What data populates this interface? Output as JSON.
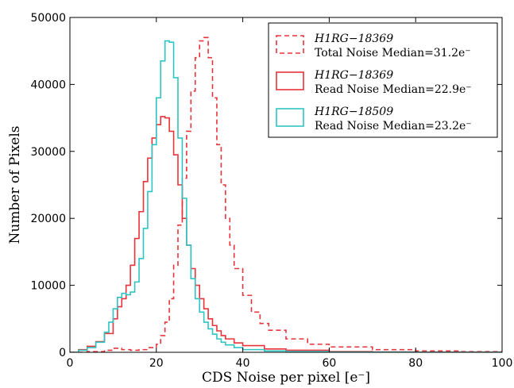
{
  "chart_data": {
    "type": "line",
    "xlabel": "CDS Noise per pixel [e⁻]",
    "ylabel": "Number of Pixels",
    "xlim": [
      0,
      100
    ],
    "ylim": [
      0,
      50000
    ],
    "x_ticks": [
      0,
      20,
      40,
      60,
      80,
      100
    ],
    "y_ticks": [
      0,
      10000,
      20000,
      30000,
      40000,
      50000
    ],
    "grid": false,
    "legend_position": "top-right",
    "series": [
      {
        "name": "H1RG−18369 Total Noise Median=31.2e⁻",
        "legend_line1": "H1RG−18369",
        "legend_line2": "Total Noise Median=31.2e⁻",
        "color": "#e8333a",
        "style": "dashed",
        "x": [
          0,
          4,
          8,
          10,
          12,
          14,
          16,
          18,
          20,
          21,
          22,
          23,
          24,
          25,
          26,
          27,
          28,
          29,
          30,
          31,
          32,
          33,
          34,
          35,
          36,
          37,
          38,
          40,
          42,
          44,
          46,
          50,
          55,
          60,
          70,
          80,
          90,
          100
        ],
        "y": [
          0,
          100,
          300,
          600,
          400,
          300,
          400,
          700,
          1200,
          2500,
          4500,
          8000,
          13000,
          19000,
          26000,
          33000,
          39000,
          44000,
          46500,
          47000,
          44000,
          38000,
          31000,
          25000,
          20000,
          16000,
          12500,
          8500,
          6000,
          4300,
          3300,
          2000,
          1200,
          800,
          400,
          200,
          100,
          0
        ]
      },
      {
        "name": "H1RG−18369 Read Noise Median=22.9e⁻",
        "legend_line1": "H1RG−18369",
        "legend_line2": "Read Noise Median=22.9e⁻",
        "color": "#e8333a",
        "style": "solid",
        "x": [
          0,
          2,
          4,
          6,
          8,
          10,
          11,
          12,
          13,
          14,
          15,
          16,
          17,
          18,
          19,
          20,
          21,
          22,
          23,
          24,
          25,
          26,
          27,
          28,
          29,
          30,
          31,
          32,
          33,
          34,
          35,
          36,
          38,
          40,
          45,
          50,
          60,
          70,
          80,
          100
        ],
        "y": [
          0,
          400,
          900,
          1600,
          2800,
          5000,
          6800,
          8000,
          10000,
          13000,
          17000,
          21000,
          25500,
          29000,
          32000,
          34000,
          35200,
          35000,
          33000,
          29500,
          25000,
          20000,
          16000,
          12500,
          10000,
          8000,
          6500,
          5000,
          4000,
          3200,
          2500,
          2000,
          1400,
          1000,
          500,
          300,
          100,
          50,
          20,
          0
        ]
      },
      {
        "name": "H1RG−18509 Read Noise Median=23.2e⁻",
        "legend_line1": "H1RG−18509",
        "legend_line2": "Read Noise Median=23.2e⁻",
        "color": "#2ec4c4",
        "style": "solid",
        "x": [
          0,
          2,
          4,
          6,
          8,
          9,
          10,
          11,
          12,
          13,
          14,
          15,
          16,
          17,
          18,
          19,
          20,
          21,
          22,
          23,
          24,
          25,
          26,
          27,
          28,
          29,
          30,
          31,
          32,
          33,
          34,
          35,
          36,
          38,
          40,
          45,
          50,
          60,
          80,
          100
        ],
        "y": [
          0,
          300,
          700,
          1500,
          3000,
          4500,
          6500,
          8200,
          8800,
          8600,
          9000,
          10500,
          14000,
          18500,
          24000,
          31000,
          38000,
          43500,
          46500,
          46300,
          41000,
          32000,
          23000,
          16000,
          11000,
          8000,
          6000,
          4500,
          3500,
          2700,
          2000,
          1500,
          1100,
          700,
          400,
          200,
          100,
          30,
          10,
          0
        ]
      }
    ]
  }
}
